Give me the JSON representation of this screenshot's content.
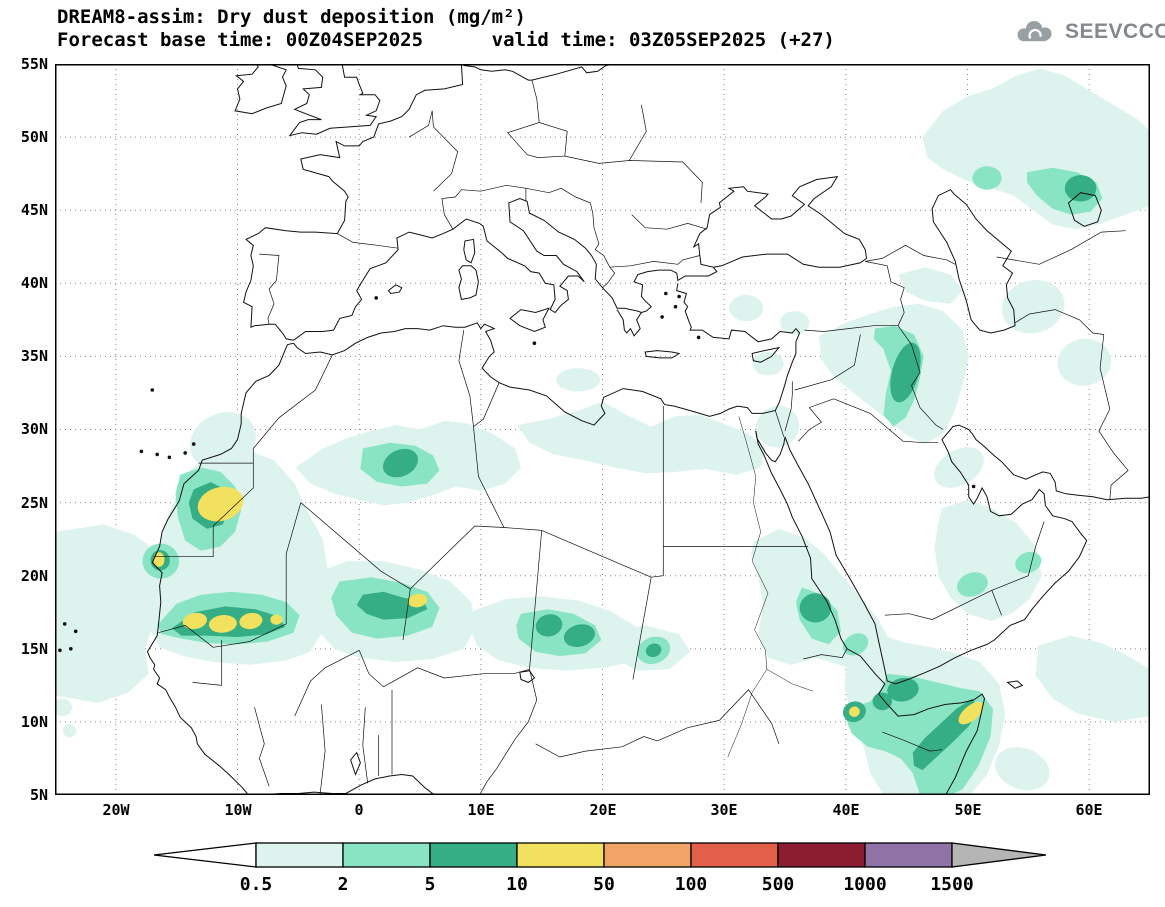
{
  "header": {
    "title_line1": "DREAM8-assim: Dry dust deposition (mg/m²)",
    "title_line2": "Forecast base time: 00Z04SEP2025      valid time: 03Z05SEP2025 (+27)",
    "logo_text": "SEEVCCC"
  },
  "chart_data": {
    "type": "heatmap",
    "model": "DREAM8-assim",
    "variable": "Dry dust deposition",
    "units": "mg/m²",
    "forecast_base_time": "00Z04SEP2025",
    "valid_time": "03Z05SEP2025",
    "forecast_offset_hours": 27,
    "map_extent": {
      "lon_min": -25,
      "lon_max": 65,
      "lat_min": 5,
      "lat_max": 55
    },
    "x_ticks": [
      "20W",
      "10W",
      "0",
      "10E",
      "20E",
      "30E",
      "40E",
      "50E",
      "60E"
    ],
    "y_ticks": [
      "55N",
      "50N",
      "45N",
      "40N",
      "35N",
      "30N",
      "25N",
      "20N",
      "15N",
      "10N",
      "5N"
    ],
    "grid": "dotted",
    "legend": {
      "levels": [
        "0.5",
        "2",
        "5",
        "10",
        "50",
        "100",
        "500",
        "1000",
        "1500"
      ],
      "colors": [
        "#ddf3ee",
        "#89e4c4",
        "#35ad85",
        "#f2e15e",
        "#f0a566",
        "#e2604a",
        "#8c1c30",
        "#8f72a6"
      ],
      "under_arrow_color": "#ffffff",
      "over_arrow_color": "#b5b5b5"
    },
    "dust_maxima": [
      {
        "region": "Western Sahara / N Mauritania",
        "lon": -11.5,
        "lat": 25,
        "deposition_mg_m2": "10-50"
      },
      {
        "region": "Mauritanian coast (Nouadhibou)",
        "lon": -16.4,
        "lat": 21,
        "deposition_mg_m2": "10-50"
      },
      {
        "region": "Sahel band S Mauritania - Mali",
        "lon": -11,
        "lat": 16.8,
        "deposition_mg_m2": "10-50"
      },
      {
        "region": "Niger (Air region)",
        "lon": 4.8,
        "lat": 18.3,
        "deposition_mg_m2": "10-50"
      },
      {
        "region": "Central Algeria",
        "lon": 3.4,
        "lat": 27.7,
        "deposition_mg_m2": "5-10"
      },
      {
        "region": "Chad (Bodele)",
        "lon": 16.8,
        "lat": 16.2,
        "deposition_mg_m2": "5-10"
      },
      {
        "region": "Western Sudan",
        "lon": 24.2,
        "lat": 14.9,
        "deposition_mg_m2": "5-10"
      },
      {
        "region": "Red Sea coast of Sudan",
        "lon": 37.5,
        "lat": 17.8,
        "deposition_mg_m2": "5-10"
      },
      {
        "region": "Afar / Djibouti",
        "lon": 40.7,
        "lat": 10.7,
        "deposition_mg_m2": "10-50"
      },
      {
        "region": "NE Somalia",
        "lon": 50.3,
        "lat": 10.6,
        "deposition_mg_m2": "10-50"
      },
      {
        "region": "Mesopotamia / W Iran",
        "lon": 44.9,
        "lat": 33.9,
        "deposition_mg_m2": "5-10"
      },
      {
        "region": "NE Caspian / Aral region",
        "lon": 59.3,
        "lat": 46.5,
        "deposition_mg_m2": "5-10"
      },
      {
        "region": "Saharan Atlantic plume",
        "lon": -20,
        "lat": 17,
        "deposition_mg_m2": "0.5-2"
      }
    ]
  }
}
